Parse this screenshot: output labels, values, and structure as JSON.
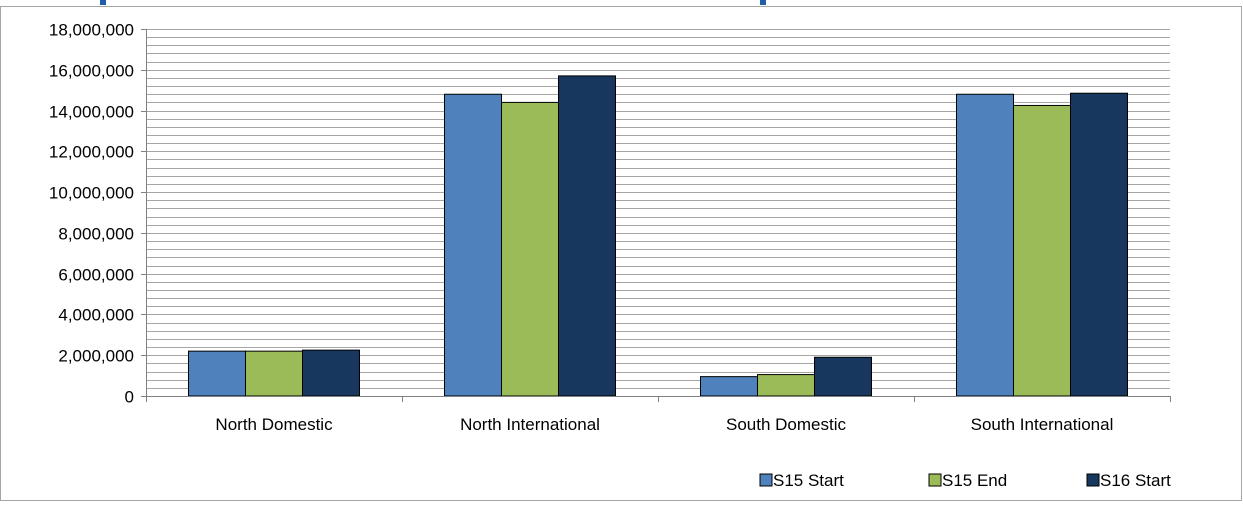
{
  "chart_data": {
    "type": "bar",
    "title": "",
    "xlabel": "",
    "ylabel": "",
    "ylim": [
      0,
      18000000
    ],
    "ytick_step": 2000000,
    "minor_gridlines_per_major": 5,
    "grid": true,
    "legend_placement": "bottom-right",
    "categories": [
      "North Domestic",
      "North International",
      "South Domestic",
      "South International"
    ],
    "series": [
      {
        "name": "S15 Start",
        "color": "#4f81bd",
        "values": [
          2200000,
          14800000,
          950000,
          14800000
        ]
      },
      {
        "name": "S15 End",
        "color": "#9bbb59",
        "values": [
          2200000,
          14400000,
          1050000,
          14250000
        ]
      },
      {
        "name": "S16 Start",
        "color": "#17375e",
        "values": [
          2250000,
          15700000,
          1900000,
          14850000
        ]
      }
    ]
  },
  "colors": {
    "gridline": "#a6a6a6",
    "axis": "#808080",
    "title_partial": "#1f5fa8",
    "border": "#a6a6a6"
  }
}
